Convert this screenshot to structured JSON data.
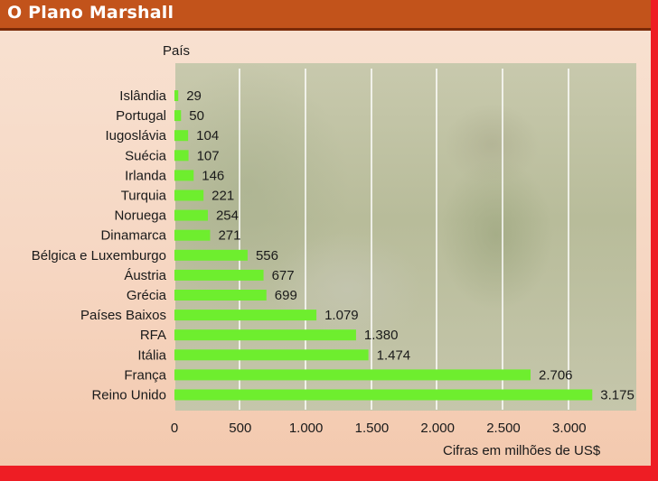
{
  "header": {
    "title": "O Plano Marshall"
  },
  "chart_data": {
    "type": "bar",
    "orientation": "horizontal",
    "ylabel": "País",
    "xlabel": "Cifras em milhões de US$",
    "categories": [
      "Islândia",
      "Portugal",
      "Iugoslávia",
      "Suécia",
      "Irlanda",
      "Turquia",
      "Noruega",
      "Dinamarca",
      "Bélgica e Luxemburgo",
      "Áustria",
      "Grécia",
      "Países Baixos",
      "RFA",
      "Itália",
      "França",
      "Reino Unido"
    ],
    "values": [
      29,
      50,
      104,
      107,
      146,
      221,
      254,
      271,
      556,
      677,
      699,
      1079,
      1380,
      1474,
      2706,
      3175
    ],
    "value_labels": [
      "29",
      "50",
      "104",
      "107",
      "146",
      "221",
      "254",
      "271",
      "556",
      "677",
      "699",
      "1.079",
      "1.380",
      "1.474",
      "2.706",
      "3.175"
    ],
    "xticks": [
      0,
      500,
      1000,
      1500,
      2000,
      2500,
      3000
    ],
    "xtick_labels": [
      "0",
      "500",
      "1.000",
      "1.500",
      "2.000",
      "2.500",
      "3.000"
    ],
    "xlim": [
      0,
      3500
    ],
    "bar_color": "#6eee2e",
    "grid": true
  }
}
